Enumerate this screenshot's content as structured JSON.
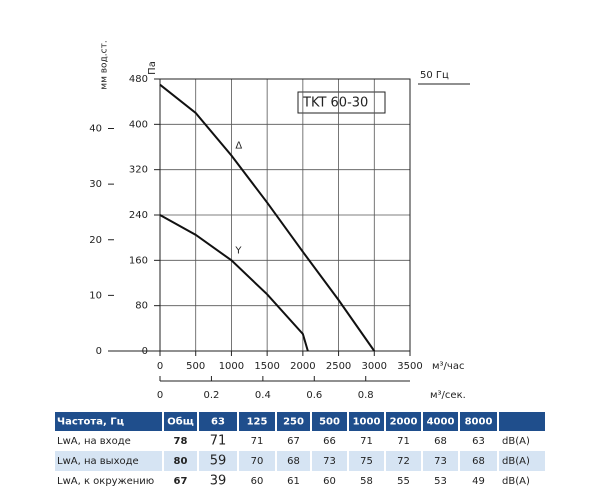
{
  "chart_data": {
    "type": "line",
    "y_label": "Па",
    "y2_label": "мм вод.ст.",
    "x_label": "м³/час",
    "x2_label": "м³/сек.",
    "model_label": "TKT 60-30",
    "frequency_label": "50 Гц",
    "ylim": [
      0,
      480
    ],
    "yticks": [
      0,
      80,
      160,
      240,
      320,
      400,
      480
    ],
    "y2lim": [
      0,
      48.9
    ],
    "y2ticks": [
      0,
      10,
      20,
      30,
      40
    ],
    "xlim": [
      0,
      3500
    ],
    "xticks": [
      0,
      500,
      1000,
      1500,
      2000,
      2500,
      3000,
      3500
    ],
    "x2lim": [
      0,
      0.9722
    ],
    "x2ticks": [
      0,
      0.2,
      0.4,
      0.6,
      0.8
    ],
    "grid": true,
    "series": [
      {
        "name": "Δ",
        "color": "#111111",
        "x": [
          0,
          500,
          1000,
          1500,
          2000,
          2500,
          3000
        ],
        "y": [
          470,
          420,
          345,
          262,
          175,
          90,
          0
        ]
      },
      {
        "name": "Y",
        "color": "#111111",
        "x": [
          0,
          500,
          1000,
          1500,
          2000,
          2070
        ],
        "y": [
          240,
          205,
          160,
          100,
          30,
          0
        ]
      }
    ]
  },
  "table": {
    "header": [
      "Частота, Гц",
      "Общ",
      "63",
      "125",
      "250",
      "500",
      "1000",
      "2000",
      "4000",
      "8000"
    ],
    "rows": [
      [
        "LwA, на входе",
        78,
        71,
        71,
        67,
        66,
        71,
        71,
        68,
        63,
        "dB(A)"
      ],
      [
        "LwA, на выходе",
        80,
        59,
        70,
        68,
        73,
        75,
        72,
        73,
        68,
        "dB(A)"
      ],
      [
        "LwA, к окружению",
        67,
        39,
        60,
        61,
        60,
        58,
        55,
        53,
        49,
        "dB(A)"
      ]
    ]
  }
}
